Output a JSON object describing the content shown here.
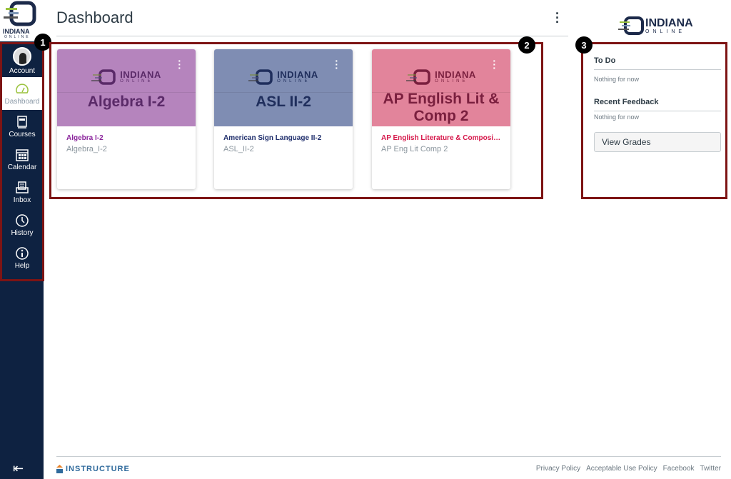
{
  "brand": {
    "name": "INDIANA",
    "sub": "ONLINE"
  },
  "nav": {
    "items": [
      {
        "label": "Account",
        "icon": "avatar"
      },
      {
        "label": "Dashboard",
        "icon": "dashboard-icon",
        "active": true
      },
      {
        "label": "Courses",
        "icon": "courses-icon"
      },
      {
        "label": "Calendar",
        "icon": "calendar-icon"
      },
      {
        "label": "Inbox",
        "icon": "inbox-icon"
      },
      {
        "label": "History",
        "icon": "clock-icon"
      },
      {
        "label": "Help",
        "icon": "info-icon"
      }
    ]
  },
  "header": {
    "title": "Dashboard"
  },
  "annotations": [
    "1",
    "2",
    "3"
  ],
  "cards": [
    {
      "hero_title": "Algebra I-2",
      "name": "Algebra I-2",
      "code": "Algebra_I-2",
      "color": "#b584bd",
      "title_color": "#5a2a68",
      "link_color": "#8b259c"
    },
    {
      "hero_title": "ASL II-2",
      "name": "American Sign Language II-2",
      "code": "ASL_II-2",
      "color": "#7f8db3",
      "title_color": "#1f2e5c",
      "link_color": "#1f2e6c"
    },
    {
      "hero_title": "AP English Lit & Comp 2",
      "name": "AP English Literature & Compositi...",
      "code": "AP Eng Lit Comp 2",
      "color": "#e2849b",
      "title_color": "#7a1f3e",
      "link_color": "#d6174a"
    }
  ],
  "right": {
    "todo": "To Do",
    "todo_empty": "Nothing for now",
    "feedback": "Recent Feedback",
    "feedback_empty": "Nothing for now",
    "view_grades": "View Grades"
  },
  "footer": {
    "brand": "INSTRUCTURE",
    "links": [
      "Privacy Policy",
      "Acceptable Use Policy",
      "Facebook",
      "Twitter"
    ]
  }
}
